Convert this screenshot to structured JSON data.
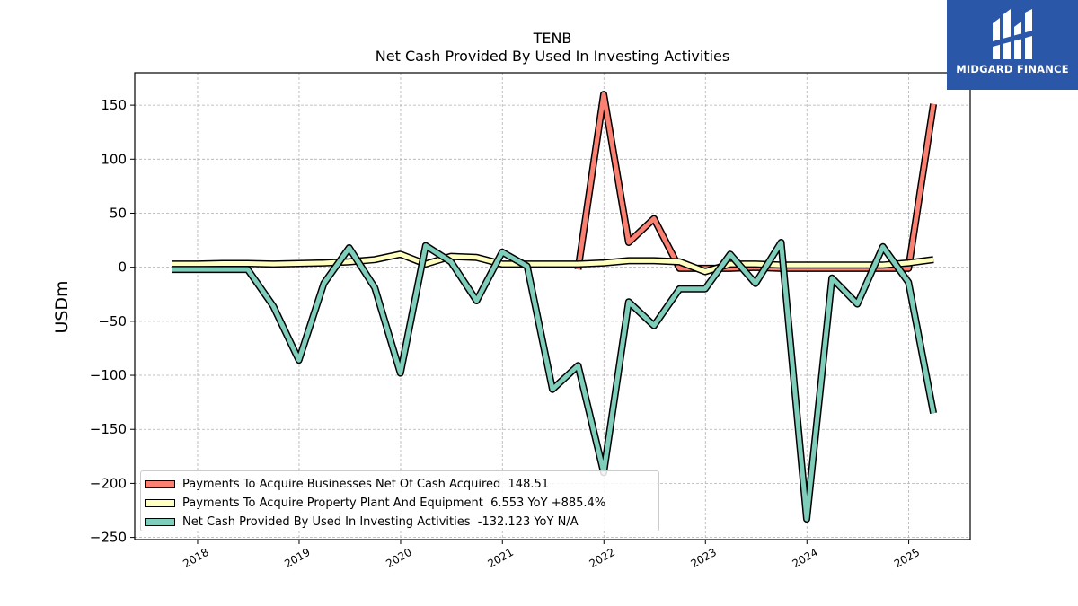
{
  "chart_data": {
    "type": "line",
    "title": "TENB",
    "subtitle": "Net Cash Provided By Used In Investing Activities",
    "ylabel": "USDm",
    "xlabel": "",
    "ylim": [
      -252,
      180
    ],
    "xlim": [
      "2017-05-20",
      "2025-08-10"
    ],
    "yticks": [
      150,
      100,
      50,
      0,
      -50,
      -100,
      -150,
      -200,
      -250
    ],
    "xticks": [
      "2018",
      "2019",
      "2020",
      "2021",
      "2022",
      "2023",
      "2024",
      "2025"
    ],
    "grid": true,
    "legend_position": "bottom-left",
    "series": [
      {
        "name": "Payments To Acquire Businesses Net Of Cash Acquired",
        "legend_label": "Payments To Acquire Businesses Net Of Cash Acquired  148.51",
        "color": "#fa8072",
        "points": [
          [
            "2021-09-30",
            -2
          ],
          [
            "2021-12-31",
            160
          ],
          [
            "2022-03-31",
            23
          ],
          [
            "2022-06-30",
            45
          ],
          [
            "2022-09-30",
            -1
          ],
          [
            "2022-12-31",
            -1
          ],
          [
            "2023-03-31",
            -1
          ],
          [
            "2023-06-30",
            0
          ],
          [
            "2023-09-30",
            -1
          ],
          [
            "2023-12-31",
            -1
          ],
          [
            "2024-03-31",
            -1
          ],
          [
            "2024-06-30",
            -1
          ],
          [
            "2024-09-30",
            -1
          ],
          [
            "2024-12-31",
            -1
          ],
          [
            "2025-03-31",
            151
          ]
        ]
      },
      {
        "name": "Payments To Acquire Property Plant And Equipment",
        "legend_label": "Payments To Acquire Property Plant And Equipment  6.553 YoY +885.4%",
        "color": "#ffffc0",
        "points": [
          [
            "2017-09-30",
            3
          ],
          [
            "2017-12-31",
            3
          ],
          [
            "2018-03-31",
            3.5
          ],
          [
            "2018-06-30",
            3.5
          ],
          [
            "2018-09-30",
            3
          ],
          [
            "2018-12-31",
            3.5
          ],
          [
            "2019-03-31",
            4
          ],
          [
            "2019-06-30",
            5
          ],
          [
            "2019-09-30",
            7
          ],
          [
            "2019-12-31",
            12
          ],
          [
            "2020-03-31",
            3
          ],
          [
            "2020-06-30",
            10
          ],
          [
            "2020-09-30",
            9
          ],
          [
            "2020-12-31",
            3
          ],
          [
            "2021-03-31",
            3
          ],
          [
            "2021-06-30",
            3
          ],
          [
            "2021-09-30",
            3
          ],
          [
            "2021-12-31",
            4
          ],
          [
            "2022-03-31",
            6
          ],
          [
            "2022-06-30",
            6
          ],
          [
            "2022-09-30",
            5
          ],
          [
            "2022-12-31",
            -4
          ],
          [
            "2023-03-31",
            3
          ],
          [
            "2023-06-30",
            3
          ],
          [
            "2023-09-30",
            2
          ],
          [
            "2023-12-31",
            2
          ],
          [
            "2024-03-31",
            2
          ],
          [
            "2024-06-30",
            2
          ],
          [
            "2024-09-30",
            2
          ],
          [
            "2024-12-31",
            4
          ],
          [
            "2025-03-31",
            7
          ]
        ]
      },
      {
        "name": "Net Cash Provided By Used In Investing Activities",
        "legend_label": "Net Cash Provided By Used In Investing Activities  -132.123 YoY N/A",
        "color": "#7fcdbb",
        "points": [
          [
            "2017-09-30",
            -2
          ],
          [
            "2017-12-31",
            -2
          ],
          [
            "2018-03-31",
            -2
          ],
          [
            "2018-06-30",
            -2
          ],
          [
            "2018-09-30",
            -36
          ],
          [
            "2018-12-31",
            -86
          ],
          [
            "2019-03-31",
            -15
          ],
          [
            "2019-06-30",
            18
          ],
          [
            "2019-09-30",
            -19
          ],
          [
            "2019-12-31",
            -98
          ],
          [
            "2020-03-31",
            20
          ],
          [
            "2020-06-30",
            5
          ],
          [
            "2020-09-30",
            -31
          ],
          [
            "2020-12-31",
            14
          ],
          [
            "2021-03-31",
            1
          ],
          [
            "2021-06-30",
            -113
          ],
          [
            "2021-09-30",
            -91
          ],
          [
            "2021-12-31",
            -190
          ],
          [
            "2022-03-31",
            -32
          ],
          [
            "2022-06-30",
            -54
          ],
          [
            "2022-09-30",
            -20
          ],
          [
            "2022-12-31",
            -20
          ],
          [
            "2023-03-31",
            12
          ],
          [
            "2023-06-30",
            -15
          ],
          [
            "2023-09-30",
            23
          ],
          [
            "2023-12-31",
            -233
          ],
          [
            "2024-03-31",
            -10
          ],
          [
            "2024-06-30",
            -34
          ],
          [
            "2024-09-30",
            19
          ],
          [
            "2024-12-31",
            -14
          ],
          [
            "2025-03-31",
            -135
          ]
        ]
      }
    ]
  },
  "logo": {
    "text": "MIDGARD FINANCE"
  }
}
